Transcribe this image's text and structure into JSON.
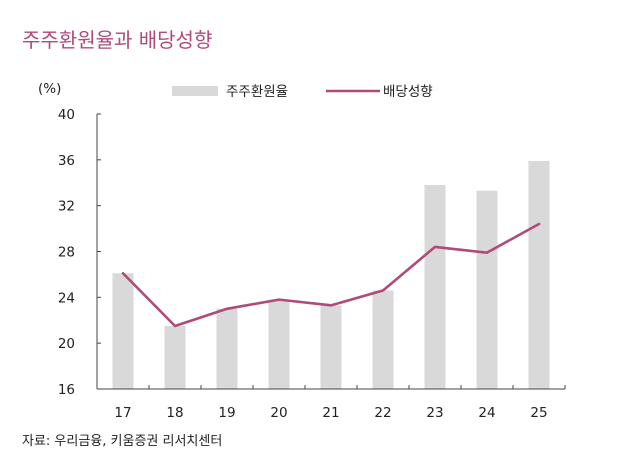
{
  "title": "주주환원율과 배당성향",
  "source": "자료: 우리금융, 키움증권 리서치센터",
  "colors": {
    "title": "#b04a78",
    "bar": "#d9d9d9",
    "line": "#b04a78",
    "axis": "#444444"
  },
  "chart_data": {
    "type": "bar",
    "unit_label": "(%)",
    "categories": [
      "17",
      "18",
      "19",
      "20",
      "21",
      "22",
      "23",
      "24",
      "25"
    ],
    "ylim": [
      16,
      40
    ],
    "yticks": [
      16,
      20,
      24,
      28,
      32,
      36,
      40
    ],
    "grid": false,
    "legend_position": "top",
    "series": [
      {
        "name": "주주환원율",
        "type": "bar",
        "values": [
          26.1,
          21.5,
          23.0,
          23.8,
          23.3,
          24.6,
          33.8,
          33.3,
          35.9
        ]
      },
      {
        "name": "배당성향",
        "type": "line",
        "values": [
          26.1,
          21.5,
          23.0,
          23.8,
          23.3,
          24.6,
          28.4,
          27.9,
          30.4
        ]
      }
    ]
  }
}
